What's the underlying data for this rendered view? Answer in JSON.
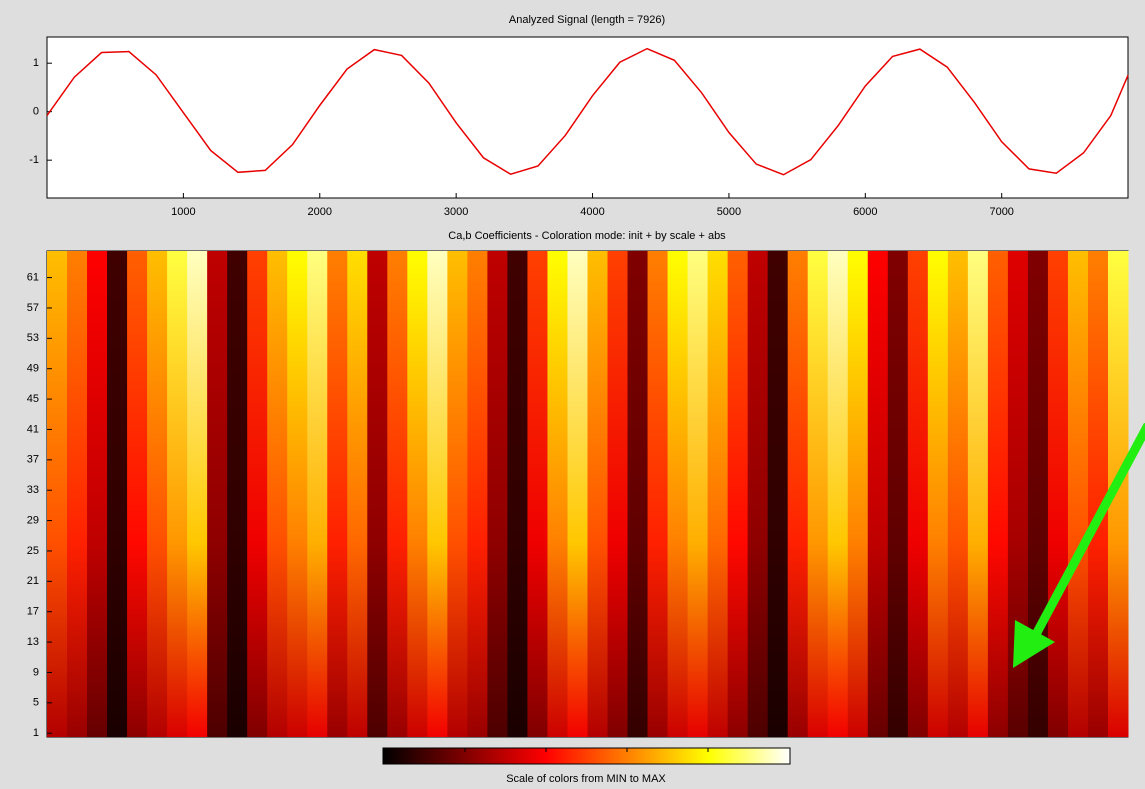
{
  "chart_data": [
    {
      "type": "line",
      "title": "Analyzed Signal  (length = 7926)",
      "x": [
        0,
        200,
        400,
        600,
        800,
        1000,
        1200,
        1400,
        1600,
        1800,
        2000,
        2200,
        2400,
        2600,
        2800,
        3000,
        3200,
        3400,
        3600,
        3800,
        4000,
        4200,
        4400,
        4600,
        4800,
        5000,
        5200,
        5400,
        5600,
        5800,
        6000,
        6200,
        6400,
        6600,
        6800,
        7000,
        7200,
        7400,
        7600,
        7800,
        7926
      ],
      "series": [
        {
          "color": "#e80000",
          "values": [
            -0.08,
            0.71,
            1.22,
            1.24,
            0.76,
            -0.02,
            -0.8,
            -1.25,
            -1.21,
            -0.68,
            0.13,
            0.88,
            1.28,
            1.16,
            0.59,
            -0.23,
            -0.95,
            -1.29,
            -1.12,
            -0.49,
            0.33,
            1.02,
            1.3,
            1.06,
            0.39,
            -0.43,
            -1.08,
            -1.3,
            -0.99,
            -0.29,
            0.53,
            1.14,
            1.29,
            0.92,
            0.19,
            -0.62,
            -1.18,
            -1.27,
            -0.85,
            -0.08,
            0.75
          ]
        }
      ],
      "xlim": [
        0,
        7926
      ],
      "ylim": [
        -1.78,
        1.54
      ],
      "xticks": [
        1000,
        2000,
        3000,
        4000,
        5000,
        6000,
        7000
      ],
      "yticks": [
        -1,
        0,
        1
      ]
    },
    {
      "type": "heatmap",
      "title": "Ca,b Coefficients - Coloration mode: init + by scale + abs",
      "values": [
        0.7,
        0.6,
        0.4,
        0.1,
        0.55,
        0.7,
        0.85,
        0.95,
        0.3,
        0.1,
        0.5,
        0.7,
        0.8,
        0.9,
        0.6,
        0.75,
        0.3,
        0.6,
        0.8,
        0.95,
        0.7,
        0.6,
        0.3,
        0.1,
        0.5,
        0.8,
        0.95,
        0.7,
        0.5,
        0.2,
        0.6,
        0.8,
        0.9,
        0.75,
        0.55,
        0.3,
        0.1,
        0.6,
        0.85,
        0.95,
        0.8,
        0.4,
        0.2,
        0.5,
        0.8,
        0.7,
        0.9,
        0.55,
        0.35,
        0.2,
        0.5,
        0.7,
        0.6,
        0.85
      ],
      "ylim": [
        0.5,
        64.5
      ],
      "yticks": [
        1,
        5,
        9,
        13,
        17,
        21,
        25,
        29,
        33,
        37,
        41,
        45,
        49,
        53,
        57,
        61
      ],
      "colorbar_label": "Scale of colors from MIN to MAX"
    }
  ]
}
